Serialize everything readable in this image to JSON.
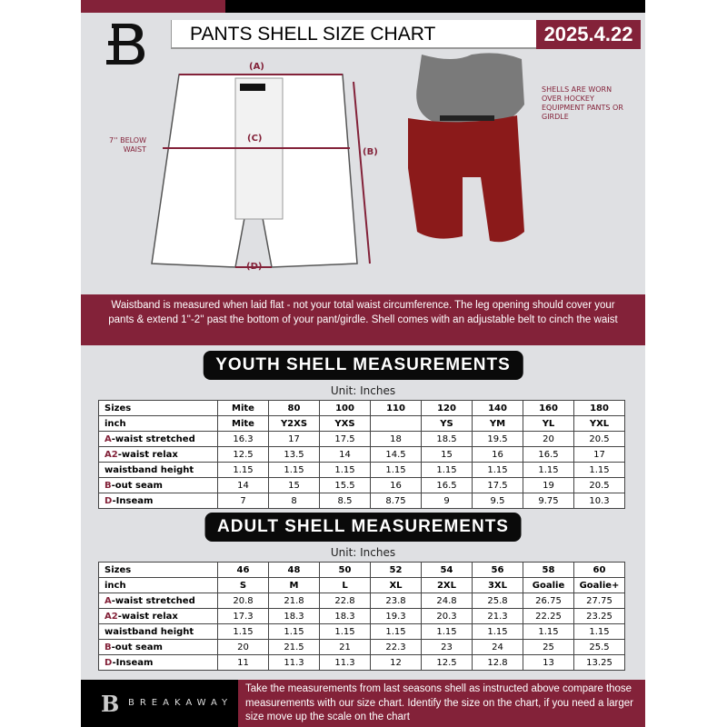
{
  "header": {
    "title": "PANTS SHELL SIZE CHART",
    "date": "2025.4.22",
    "logo_text": "B"
  },
  "diagram": {
    "label_a": "(A)",
    "label_b": "(B)",
    "label_c": "(C)",
    "label_d": "(D)",
    "below_waist": "7'' BELOW WAIST",
    "shell_note": "SHELLS ARE WORN OVER HOCKEY EQUIPMENT PANTS OR GIRDLE"
  },
  "colors": {
    "accent": "#832239",
    "background": "#dfe0e3"
  },
  "info_band": "Waistband is measured when laid flat - not your total waist circumference. The leg opening should cover your pants & extend 1''-2'' past the bottom of your pant/girdle. Shell comes with an adjustable belt to cinch the waist",
  "youth": {
    "title": "YOUTH SHELL MEASUREMENTS",
    "unit": "Unit: Inches",
    "rows": [
      {
        "prefix": "",
        "label": "Sizes",
        "values": [
          "Mite",
          "80",
          "100",
          "110",
          "120",
          "140",
          "160",
          "180"
        ]
      },
      {
        "prefix": "",
        "label": "inch",
        "values": [
          "Mite",
          "Y2XS",
          "YXS",
          "",
          "YS",
          "YM",
          "YL",
          "YXL"
        ]
      },
      {
        "prefix": "A",
        "label": "-waist stretched",
        "values": [
          "16.3",
          "17",
          "17.5",
          "18",
          "18.5",
          "19.5",
          "20",
          "20.5"
        ]
      },
      {
        "prefix": "A2",
        "label": "-waist relax",
        "values": [
          "12.5",
          "13.5",
          "14",
          "14.5",
          "15",
          "16",
          "16.5",
          "17"
        ]
      },
      {
        "prefix": "",
        "label": "waistband height",
        "values": [
          "1.15",
          "1.15",
          "1.15",
          "1.15",
          "1.15",
          "1.15",
          "1.15",
          "1.15"
        ]
      },
      {
        "prefix": "B",
        "label": "-out seam",
        "values": [
          "14",
          "15",
          "15.5",
          "16",
          "16.5",
          "17.5",
          "19",
          "20.5"
        ]
      },
      {
        "prefix": "D",
        "label": "-Inseam",
        "values": [
          "7",
          "8",
          "8.5",
          "8.75",
          "9",
          "9.5",
          "9.75",
          "10.3"
        ]
      }
    ]
  },
  "adult": {
    "title": "ADULT SHELL MEASUREMENTS",
    "unit": "Unit: Inches",
    "rows": [
      {
        "prefix": "",
        "label": "Sizes",
        "values": [
          "46",
          "48",
          "50",
          "52",
          "54",
          "56",
          "58",
          "60"
        ]
      },
      {
        "prefix": "",
        "label": "inch",
        "values": [
          "S",
          "M",
          "L",
          "XL",
          "2XL",
          "3XL",
          "Goalie",
          "Goalie+"
        ]
      },
      {
        "prefix": "A",
        "label": "-waist stretched",
        "values": [
          "20.8",
          "21.8",
          "22.8",
          "23.8",
          "24.8",
          "25.8",
          "26.75",
          "27.75"
        ]
      },
      {
        "prefix": "A2",
        "label": "-waist relax",
        "values": [
          "17.3",
          "18.3",
          "18.3",
          "19.3",
          "20.3",
          "21.3",
          "22.25",
          "23.25"
        ]
      },
      {
        "prefix": "",
        "label": "waistband height",
        "values": [
          "1.15",
          "1.15",
          "1.15",
          "1.15",
          "1.15",
          "1.15",
          "1.15",
          "1.15"
        ]
      },
      {
        "prefix": "B",
        "label": "-out seam",
        "values": [
          "20",
          "21.5",
          "21",
          "22.3",
          "23",
          "24",
          "25",
          "25.5"
        ]
      },
      {
        "prefix": "D",
        "label": "-Inseam",
        "values": [
          "11",
          "11.3",
          "11.3",
          "12",
          "12.5",
          "12.8",
          "13",
          "13.25"
        ]
      }
    ]
  },
  "footer": {
    "brand": "BREAKAWAY",
    "text": "Take the measurements from last seasons shell as instructed above compare those measurements  with our size chart. Identify the size on the chart, if you need a larger size move up the scale on the chart"
  }
}
